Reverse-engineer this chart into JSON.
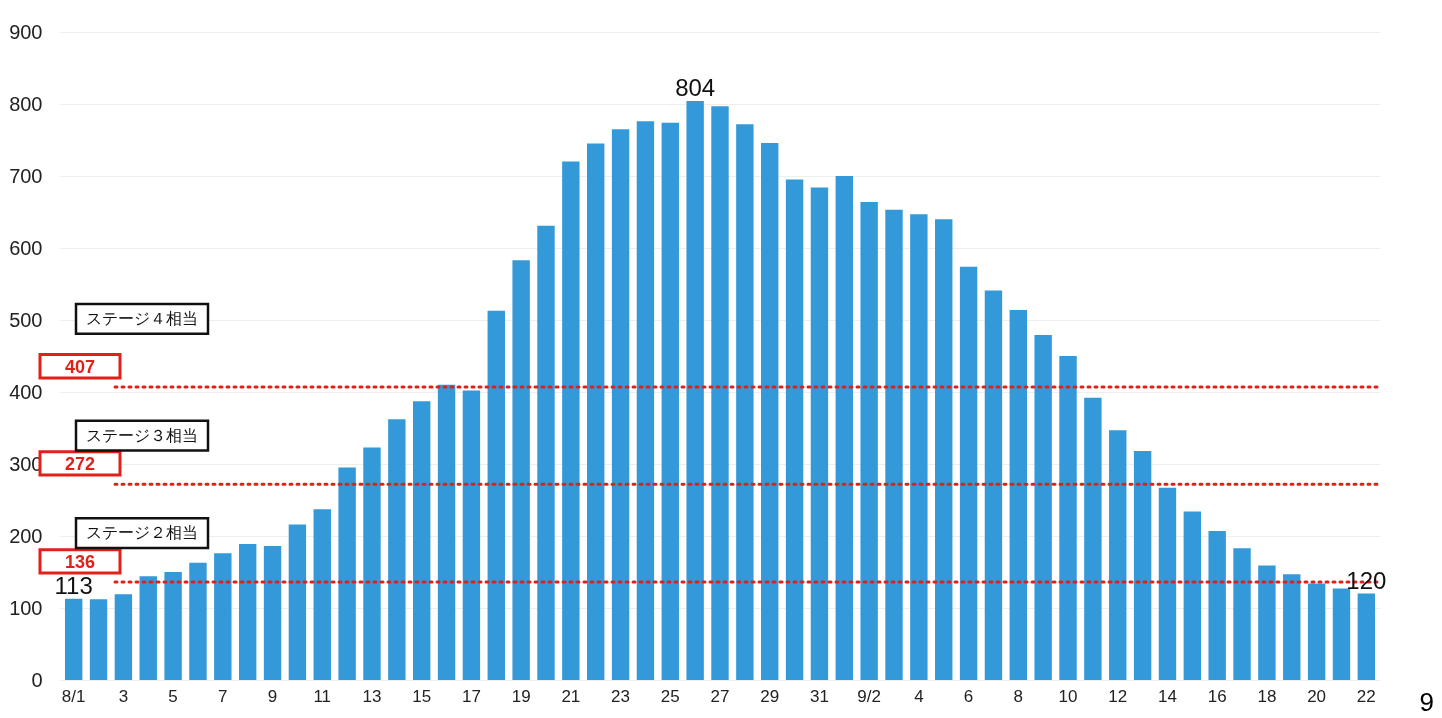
{
  "chart_data": {
    "type": "bar",
    "categories": [
      "8/1",
      null,
      "3",
      null,
      "5",
      null,
      "7",
      null,
      "9",
      null,
      "11",
      null,
      "13",
      null,
      "15",
      null,
      "17",
      null,
      "19",
      null,
      "21",
      null,
      "23",
      null,
      "25",
      null,
      "27",
      null,
      "29",
      null,
      "31",
      null,
      "9/2",
      null,
      "4",
      null,
      "6",
      null,
      "8",
      null,
      "10",
      null,
      "12",
      null,
      "14",
      null,
      "16",
      null,
      "18",
      null,
      "20",
      null,
      "22"
    ],
    "values": [
      113,
      112,
      119,
      144,
      150,
      163,
      176,
      189,
      186,
      216,
      237,
      295,
      323,
      362,
      387,
      410,
      402,
      513,
      583,
      631,
      720,
      745,
      765,
      776,
      774,
      804,
      797,
      772,
      746,
      695,
      684,
      700,
      664,
      653,
      647,
      640,
      574,
      541,
      514,
      479,
      450,
      392,
      347,
      318,
      267,
      234,
      207,
      183,
      159,
      147,
      134,
      127,
      120
    ],
    "value_labels": [
      "113",
      null,
      null,
      null,
      null,
      null,
      null,
      null,
      null,
      null,
      null,
      null,
      null,
      null,
      null,
      null,
      null,
      null,
      null,
      null,
      null,
      null,
      null,
      null,
      null,
      "804",
      null,
      null,
      null,
      null,
      null,
      null,
      null,
      null,
      null,
      null,
      null,
      null,
      null,
      null,
      null,
      null,
      null,
      null,
      null,
      null,
      null,
      null,
      null,
      null,
      null,
      null,
      "120"
    ],
    "color": "#3399d8",
    "ylim": [
      0,
      900
    ],
    "yticks": [
      0,
      100,
      200,
      300,
      400,
      500,
      600,
      700,
      800,
      900
    ],
    "grid": "y",
    "line_style": "dotted",
    "ref_lines": [
      {
        "axis": "y",
        "value": 407,
        "label": "407",
        "color": "#e0201a"
      },
      {
        "axis": "y",
        "value": 272,
        "label": "272",
        "color": "#e0201a"
      },
      {
        "axis": "y",
        "value": 136,
        "label": "136",
        "color": "#e0201a"
      }
    ],
    "annotations": [
      "ステージ４相当",
      "ステージ３相当",
      "ステージ２相当",
      "9"
    ]
  }
}
